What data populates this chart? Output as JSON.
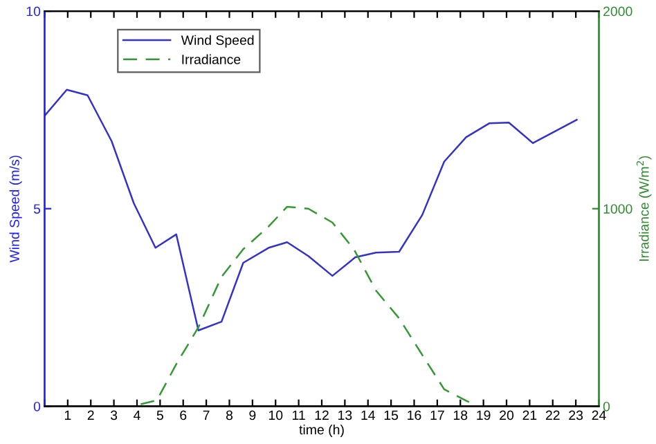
{
  "chart_data": {
    "type": "line",
    "xlabel": "time (h)",
    "ylabel": "Wind Speed (m/s)",
    "y2label": "Irradiance (W/m$^{2}$)",
    "xlim": [
      0,
      24
    ],
    "xticks": [
      {
        "value": 0,
        "label": null
      },
      1,
      2,
      3,
      4,
      5,
      6,
      7,
      8,
      9,
      10,
      11,
      12,
      13,
      14,
      15,
      16,
      17,
      18,
      19,
      20,
      21,
      22,
      23,
      24
    ],
    "ylim": [
      0,
      10
    ],
    "yticks": [
      0,
      5,
      10
    ],
    "y2lim": [
      0,
      2000
    ],
    "y2ticks": [
      0,
      1000,
      2000
    ],
    "legend": "top left",
    "grid": false,
    "series": [
      {
        "name": "Wind Speed",
        "color": "#3333cc",
        "line_style": "solid",
        "x": [
          0,
          0.96,
          1.86,
          2.9,
          3.86,
          4.8,
          5.7,
          6.66,
          7.66,
          8.6,
          9.7,
          10.5,
          11.42,
          12.46,
          13.45,
          14.35,
          15.35,
          16.35,
          17.3,
          18.25,
          19.25,
          20.1,
          21.14,
          23.04
        ],
        "values": [
          7.35,
          8.01,
          7.87,
          6.71,
          5.14,
          4.01,
          4.35,
          1.92,
          2.14,
          3.63,
          4.01,
          4.15,
          3.8,
          3.3,
          3.77,
          3.89,
          3.91,
          4.84,
          6.19,
          6.81,
          7.16,
          7.18,
          6.66,
          7.25
        ]
      },
      {
        "name": "Irradiance",
        "color": "#339933",
        "line_style": "dashed",
        "axis": "y2",
        "x": [
          4.16,
          4.86,
          5.7,
          6.66,
          7.66,
          8.6,
          9.7,
          10.5,
          11.42,
          12.46,
          13.4,
          14.35,
          15.35,
          16.35,
          17.3,
          18.25,
          18.75
        ],
        "values": [
          10,
          30,
          213,
          400,
          655,
          795,
          910,
          1010,
          1000,
          930,
          793,
          585,
          445,
          260,
          86,
          28,
          0
        ]
      }
    ]
  }
}
